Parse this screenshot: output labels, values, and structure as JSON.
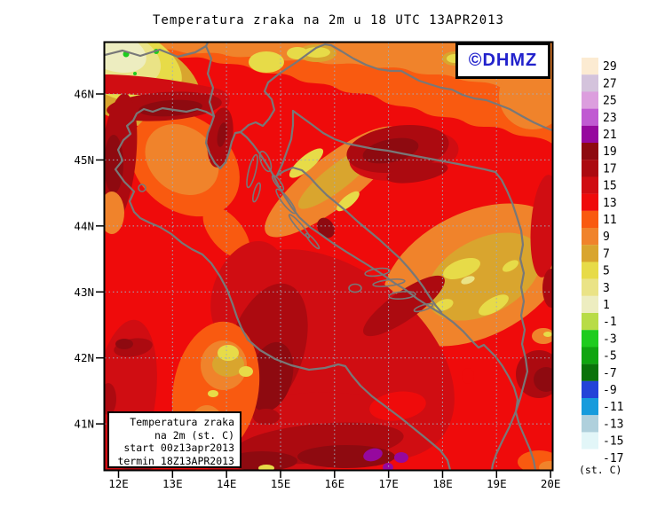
{
  "title": "Temperatura zraka na 2m u 18 UTC 13APR2013",
  "watermark": {
    "text": "©DHMZ",
    "color": "#2222CC"
  },
  "info_box": {
    "lines": [
      "Temperatura zraka",
      "na 2m (st. C)",
      "start 00z13apr2013",
      "termin 18Z13APR2013"
    ]
  },
  "axes": {
    "lat_labels": [
      "46N",
      "45N",
      "44N",
      "43N",
      "42N",
      "41N"
    ],
    "lon_labels": [
      "12E",
      "13E",
      "14E",
      "15E",
      "16E",
      "17E",
      "18E",
      "19E",
      "20E"
    ]
  },
  "scale": {
    "unit_label": "(st. C)",
    "values": [
      29,
      27,
      25,
      23,
      21,
      19,
      17,
      15,
      13,
      11,
      9,
      7,
      5,
      3,
      1,
      -1,
      -3,
      -5,
      -7,
      -9,
      -11,
      -13,
      -15,
      -17
    ],
    "colors": [
      "#FCEBD2",
      "#D4C3DC",
      "#DC9EDE",
      "#C05AD2",
      "#96089E",
      "#8E0A10",
      "#AC0A10",
      "#D00D12",
      "#EF0B0B",
      "#F95A10",
      "#F0832B",
      "#D9A52E",
      "#E7DB48",
      "#EAE386",
      "#EDEDC0",
      "#B8DC46",
      "#1ECC1E",
      "#10A510",
      "#0A730A",
      "#2343D8",
      "#169BDC",
      "#AFD0DC",
      "#E2F6F8",
      "#FFFFFF"
    ]
  }
}
